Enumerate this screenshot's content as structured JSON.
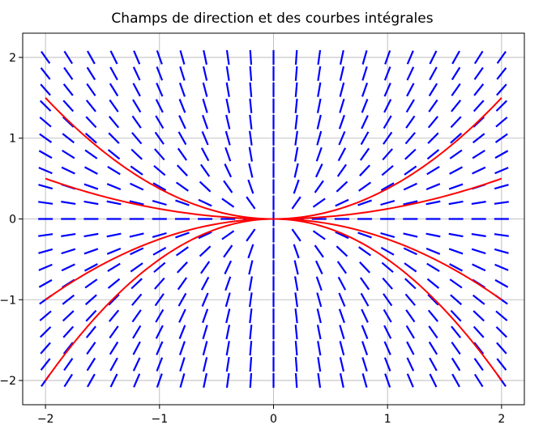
{
  "chart_data": {
    "type": "line",
    "title": "Champs de direction et des courbes intégrales",
    "xlabel": "",
    "ylabel": "",
    "xlim": [
      -2.2,
      2.2
    ],
    "ylim": [
      -2.3,
      2.3
    ],
    "grid": true,
    "x_ticks": [
      -2,
      -1,
      0,
      1,
      2
    ],
    "y_ticks": [
      -2,
      -1,
      0,
      1,
      2
    ],
    "x_tick_labels": [
      "−2",
      "−1",
      "0",
      "1",
      "2"
    ],
    "y_tick_labels": [
      "−2",
      "−1",
      "0",
      "1",
      "2"
    ],
    "direction_field": {
      "slope_equation": "dy/dx = 2y/x",
      "x_range": [
        -2,
        2
      ],
      "y_range": [
        -2,
        2
      ],
      "n": 21,
      "color": "#0000ff"
    },
    "series": [
      {
        "k": 0.375,
        "x_range": [
          -2,
          2
        ],
        "color": "#ff0000"
      },
      {
        "k": 0.125,
        "x_range": [
          -2,
          2
        ],
        "color": "#ff0000"
      },
      {
        "k": -0.25,
        "x_range": [
          -2,
          2
        ],
        "color": "#ff0000"
      },
      {
        "k": -0.5,
        "x_range": [
          -2,
          2
        ],
        "color": "#ff0000"
      }
    ],
    "curve_formula": "y = k * x^2"
  }
}
